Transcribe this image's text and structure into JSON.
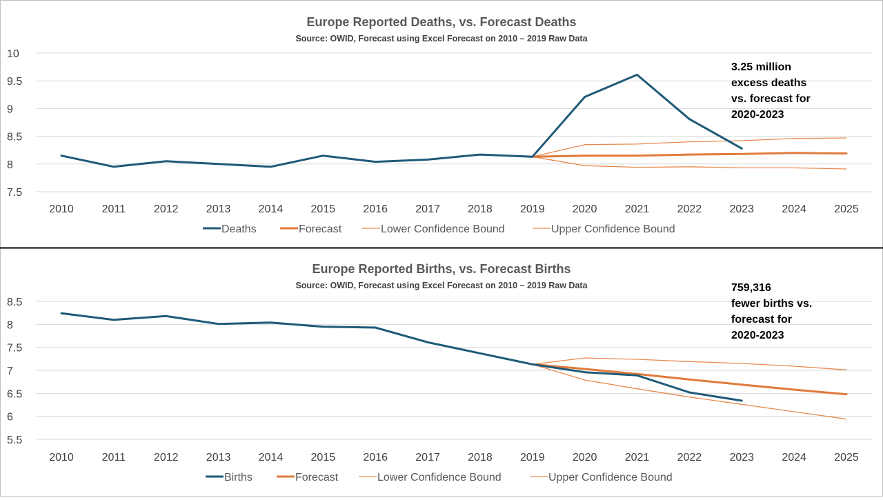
{
  "colors": {
    "actual": "#1f5a78",
    "forecast": "#e07a3c",
    "bound": "#e88a4f",
    "grid": "#d9d9d9",
    "divider": "#000000"
  },
  "chart_data": [
    {
      "type": "line",
      "title": "Europe Reported Deaths, vs. Forecast Deaths",
      "subtitle": "Source: OWID, Forecast using Excel Forecast on 2010 – 2019 Raw Data",
      "xlabel": "",
      "ylabel": "",
      "x": [
        "2010",
        "2011",
        "2012",
        "2013",
        "2014",
        "2015",
        "2016",
        "2017",
        "2018",
        "2019",
        "2020",
        "2021",
        "2022",
        "2023",
        "2024",
        "2025"
      ],
      "ylim": [
        7.5,
        10
      ],
      "yticks": [
        "10",
        "9.5",
        "9",
        "8.5",
        "8",
        "7.5"
      ],
      "grid": true,
      "legend_position": "bottom",
      "annotation": [
        "3.25 million",
        "excess deaths",
        "vs. forecast for",
        "2020-2023"
      ],
      "series": [
        {
          "name": "Deaths",
          "role": "actual",
          "values": [
            8.15,
            7.95,
            8.05,
            8.0,
            7.95,
            8.15,
            8.04,
            8.08,
            8.17,
            8.13,
            9.21,
            9.61,
            8.81,
            8.28,
            null,
            null
          ]
        },
        {
          "name": "Forecast",
          "role": "forecast",
          "values": [
            null,
            null,
            null,
            null,
            null,
            null,
            null,
            null,
            null,
            8.13,
            8.15,
            8.15,
            8.17,
            8.18,
            8.2,
            8.19
          ]
        },
        {
          "name": "Lower Confidence Bound",
          "role": "bound",
          "values": [
            null,
            null,
            null,
            null,
            null,
            null,
            null,
            null,
            null,
            8.13,
            7.97,
            7.94,
            7.95,
            7.93,
            7.93,
            7.91
          ]
        },
        {
          "name": "Upper Confidence Bound",
          "role": "bound",
          "values": [
            null,
            null,
            null,
            null,
            null,
            null,
            null,
            null,
            null,
            8.13,
            8.35,
            8.36,
            8.4,
            8.42,
            8.46,
            8.47
          ]
        }
      ]
    },
    {
      "type": "line",
      "title": "Europe Reported Births, vs. Forecast Births",
      "subtitle": "Source: OWID, Forecast using Excel Forecast on 2010 – 2019 Raw Data",
      "xlabel": "",
      "ylabel": "",
      "x": [
        "2010",
        "2011",
        "2012",
        "2013",
        "2014",
        "2015",
        "2016",
        "2017",
        "2018",
        "2019",
        "2020",
        "2021",
        "2022",
        "2023",
        "2024",
        "2025"
      ],
      "ylim": [
        5.5,
        8.5
      ],
      "yticks": [
        "8.5",
        "8",
        "7.5",
        "7",
        "6.5",
        "6",
        "5.5"
      ],
      "grid": true,
      "legend_position": "bottom",
      "annotation": [
        "759,316",
        "fewer births vs.",
        "forecast for",
        "2020-2023"
      ],
      "series": [
        {
          "name": "Births",
          "role": "actual",
          "values": [
            8.24,
            8.1,
            8.18,
            8.01,
            8.04,
            7.95,
            7.93,
            7.61,
            7.37,
            7.13,
            6.96,
            6.89,
            6.52,
            6.34,
            null,
            null
          ]
        },
        {
          "name": "Forecast",
          "role": "forecast",
          "values": [
            null,
            null,
            null,
            null,
            null,
            null,
            null,
            null,
            null,
            7.13,
            7.03,
            6.92,
            6.8,
            6.69,
            6.58,
            6.48
          ]
        },
        {
          "name": "Lower Confidence Bound",
          "role": "bound",
          "values": [
            null,
            null,
            null,
            null,
            null,
            null,
            null,
            null,
            null,
            7.13,
            6.79,
            6.6,
            6.42,
            6.26,
            6.1,
            5.94
          ]
        },
        {
          "name": "Upper Confidence Bound",
          "role": "bound",
          "values": [
            null,
            null,
            null,
            null,
            null,
            null,
            null,
            null,
            null,
            7.13,
            7.27,
            7.24,
            7.19,
            7.15,
            7.09,
            7.01
          ]
        }
      ]
    }
  ]
}
